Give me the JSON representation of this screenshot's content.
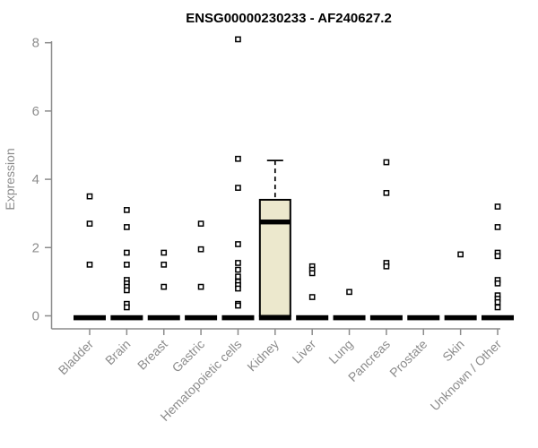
{
  "chart": {
    "title": "ENSG00000230233 - AF240627.2",
    "ylabel": "Expression"
  },
  "chart_data": {
    "type": "boxplot",
    "title": "ENSG00000230233 - AF240627.2",
    "xlabel": "",
    "ylabel": "Expression",
    "ylim": [
      0,
      8.3
    ],
    "yticks": [
      0,
      2,
      4,
      6,
      8
    ],
    "grid": false,
    "legend": "none",
    "colors": {
      "box_fill": "#ece8cd",
      "box_stroke": "#000000",
      "median": "#000000",
      "zero_bar": "#000000",
      "outlier_stroke": "#000000",
      "outlier_fill": "#ffffff",
      "axis": "#8c8c8c",
      "title": "#000000"
    },
    "categories": [
      "Bladder",
      "Brain",
      "Breast",
      "Gastric",
      "Hematopoietic cells",
      "Kidney",
      "Liver",
      "Lung",
      "Pancreas",
      "Prostate",
      "Skin",
      "Unknown / Other"
    ],
    "boxes": [
      {
        "category": "Bladder",
        "q1": 0,
        "median": 0,
        "q3": 0,
        "whisker_low": 0,
        "whisker_high": 0,
        "outliers": [
          3.5,
          2.7,
          1.5
        ]
      },
      {
        "category": "Brain",
        "q1": 0,
        "median": 0,
        "q3": 0,
        "whisker_low": 0,
        "whisker_high": 0,
        "outliers": [
          3.1,
          2.6,
          1.85,
          1.5,
          1.05,
          0.95,
          0.85,
          0.75,
          0.35,
          0.25
        ]
      },
      {
        "category": "Breast",
        "q1": 0,
        "median": 0,
        "q3": 0,
        "whisker_low": 0,
        "whisker_high": 0,
        "outliers": [
          1.85,
          1.5,
          0.85
        ]
      },
      {
        "category": "Gastric",
        "q1": 0,
        "median": 0,
        "q3": 0,
        "whisker_low": 0,
        "whisker_high": 0,
        "outliers": [
          2.7,
          1.95,
          0.85
        ]
      },
      {
        "category": "Hematopoietic cells",
        "q1": 0,
        "median": 0,
        "q3": 0,
        "whisker_low": 0,
        "whisker_high": 0,
        "outliers": [
          8.1,
          4.6,
          3.75,
          2.1,
          1.55,
          1.35,
          1.15,
          1.0,
          0.9,
          0.8,
          0.35,
          0.3
        ]
      },
      {
        "category": "Kidney",
        "q1": 0,
        "median": 2.75,
        "q3": 3.4,
        "whisker_low": 0,
        "whisker_high": 4.55,
        "outliers": []
      },
      {
        "category": "Liver",
        "q1": 0,
        "median": 0,
        "q3": 0,
        "whisker_low": 0,
        "whisker_high": 0,
        "outliers": [
          1.45,
          1.35,
          1.25,
          0.55
        ]
      },
      {
        "category": "Lung",
        "q1": 0,
        "median": 0,
        "q3": 0,
        "whisker_low": 0,
        "whisker_high": 0,
        "outliers": [
          0.7
        ]
      },
      {
        "category": "Pancreas",
        "q1": 0,
        "median": 0,
        "q3": 0,
        "whisker_low": 0,
        "whisker_high": 0,
        "outliers": [
          4.5,
          3.6,
          1.55,
          1.45
        ]
      },
      {
        "category": "Prostate",
        "q1": 0,
        "median": 0,
        "q3": 0,
        "whisker_low": 0,
        "whisker_high": 0,
        "outliers": []
      },
      {
        "category": "Skin",
        "q1": 0,
        "median": 0,
        "q3": 0,
        "whisker_low": 0,
        "whisker_high": 0,
        "outliers": [
          1.8
        ]
      },
      {
        "category": "Unknown / Other",
        "q1": 0,
        "median": 0,
        "q3": 0,
        "whisker_low": 0,
        "whisker_high": 0,
        "outliers": [
          3.2,
          2.6,
          1.85,
          1.75,
          1.05,
          0.95,
          0.6,
          0.5,
          0.4,
          0.25
        ]
      }
    ]
  }
}
